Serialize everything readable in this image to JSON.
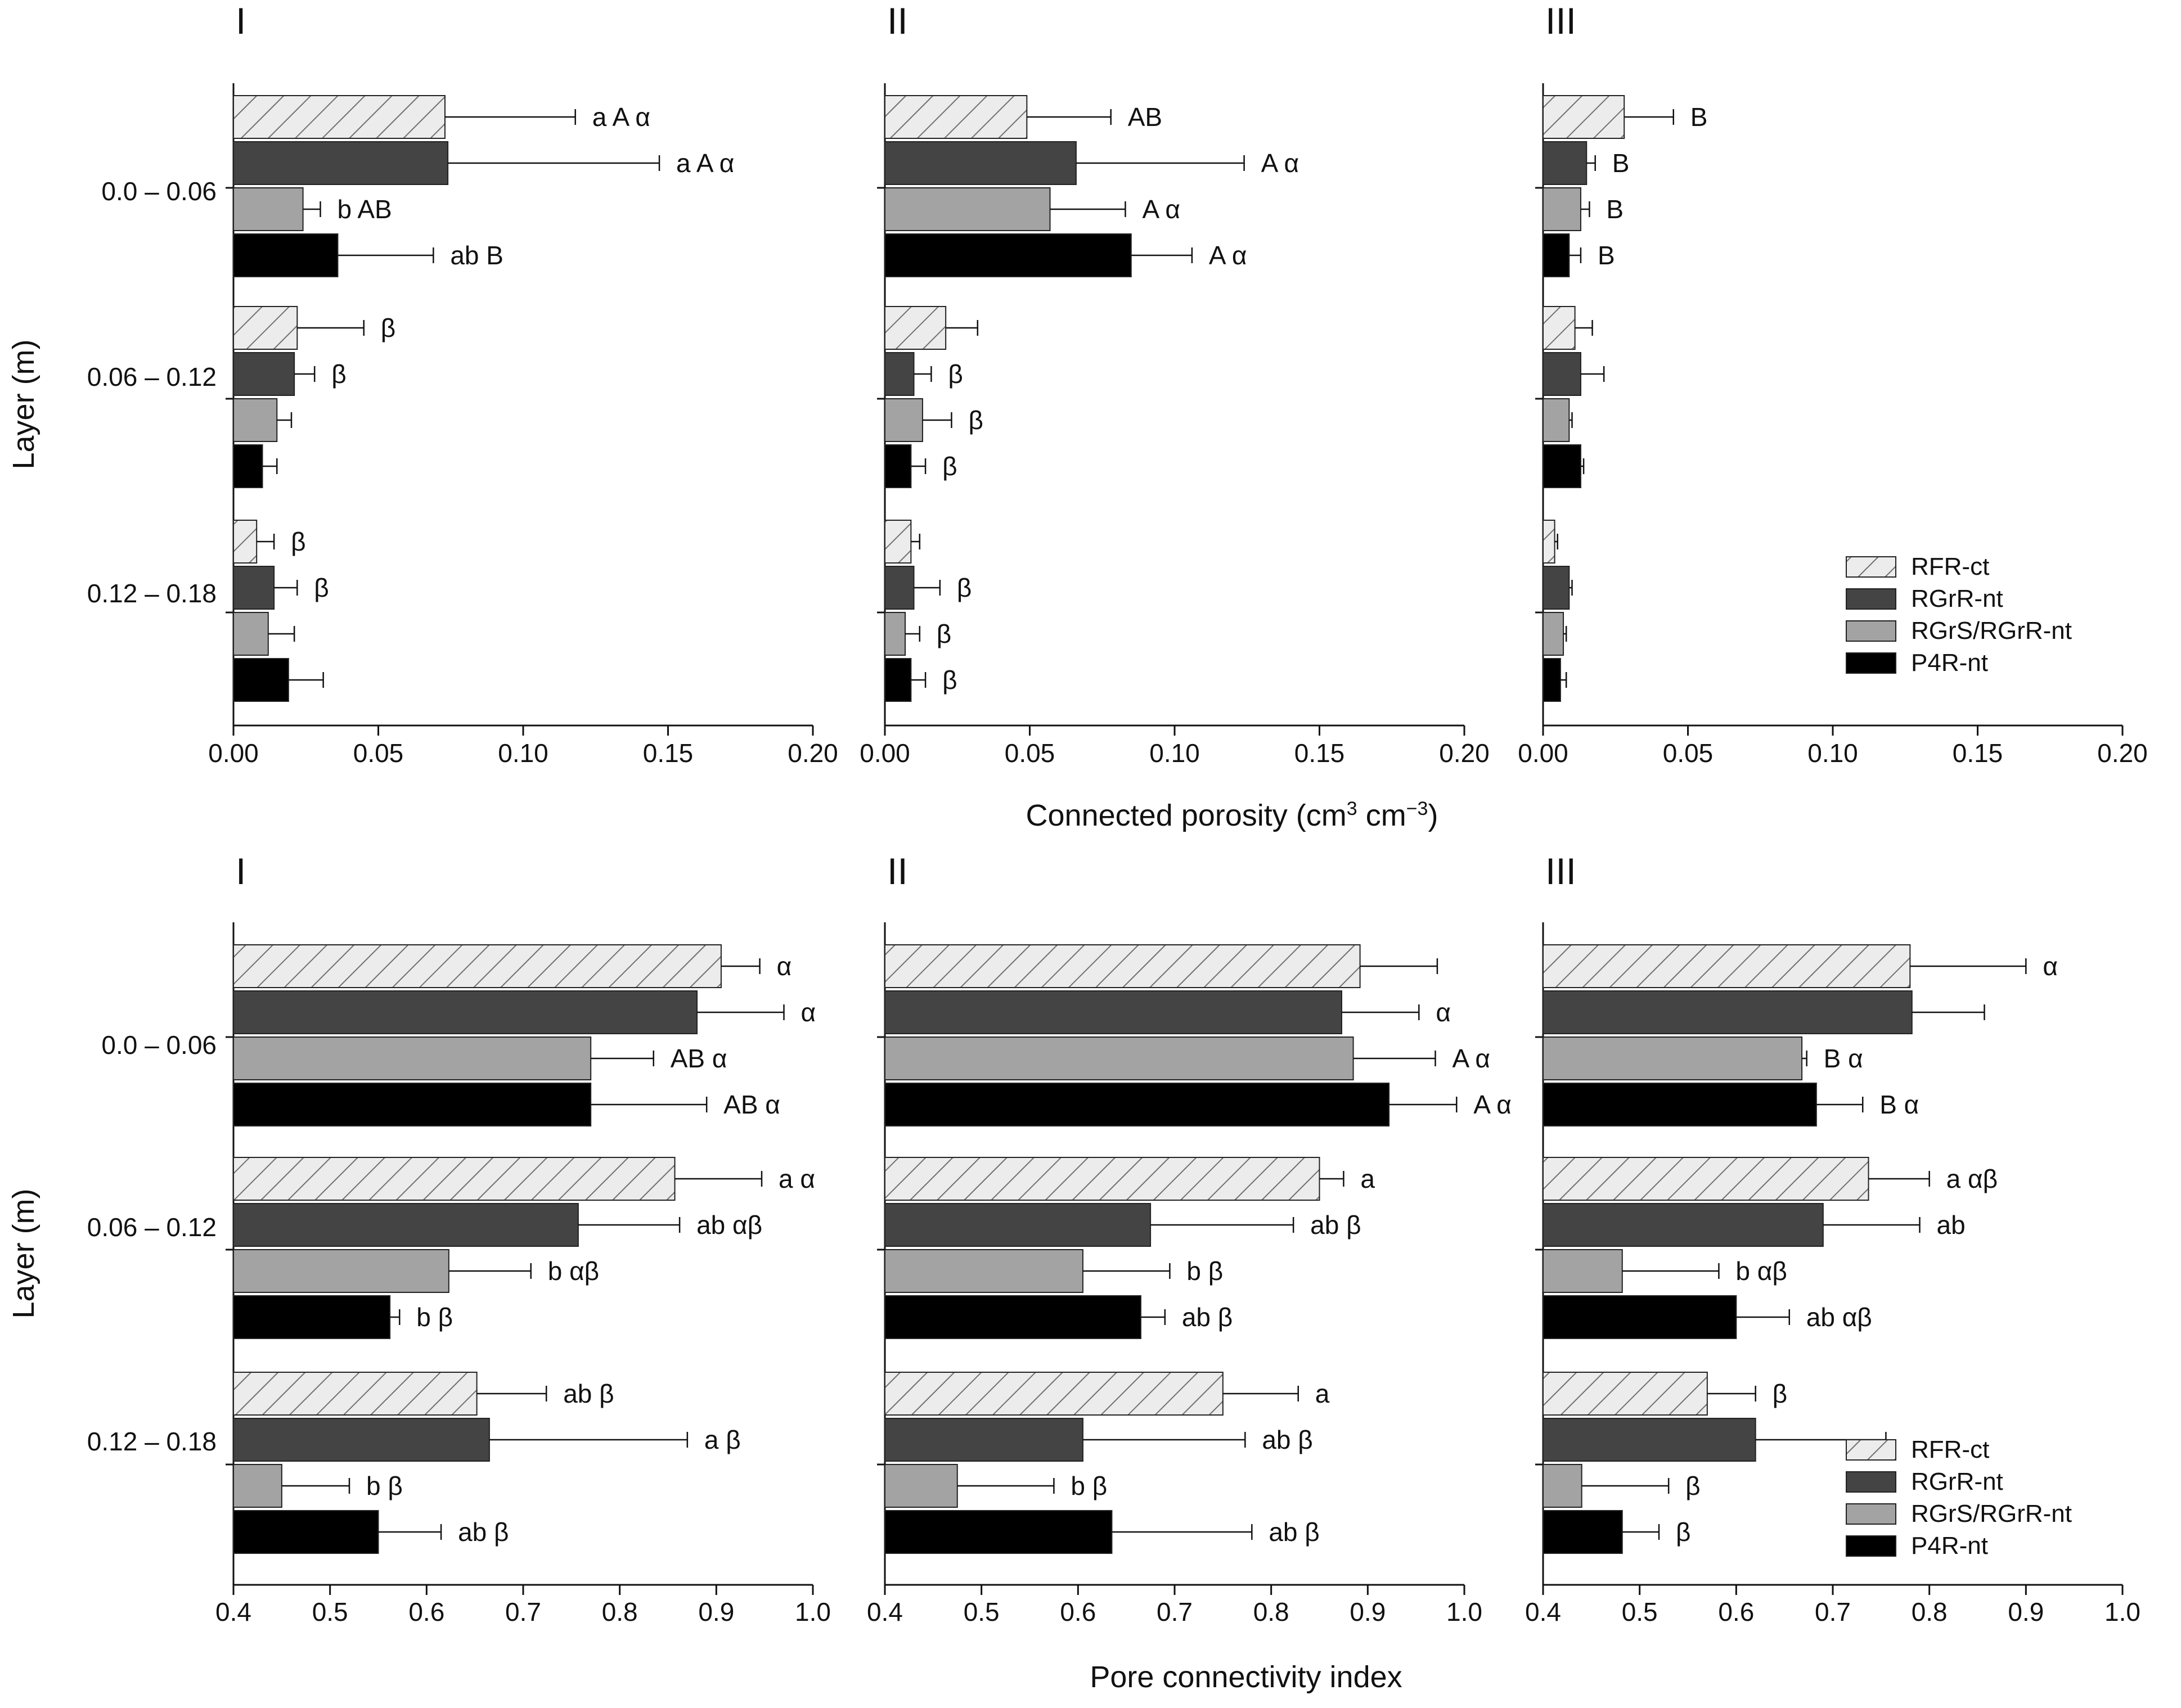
{
  "chart_data": {
    "type": "bar",
    "orientation": "horizontal",
    "categories": [
      "0.0 – 0.06",
      "0.06 – 0.12",
      "0.12 – 0.18"
    ],
    "series_names": [
      "RFR-ct",
      "RGrR-nt",
      "RGrS/RGrR-nt",
      "P4R-nt"
    ],
    "series_colors": [
      "#ececec",
      "#444444",
      "#a3a3a3",
      "#000000"
    ],
    "series_hatch": [
      true,
      false,
      false,
      false
    ],
    "legend": {
      "position": "bottom-right",
      "entries": [
        "RFR-ct",
        "RGrR-nt",
        "RGrS/RGrR-nt",
        "P4R-nt"
      ]
    },
    "ylabel": "Layer (m)",
    "top": {
      "xlabel_main": "Connected porosity (cm",
      "xlabel_sup1": "3",
      "xlabel_mid": " cm",
      "xlabel_sup2": "−3",
      "xlabel_end": ")",
      "xlim": [
        0,
        0.2
      ],
      "ticks": [
        0,
        0.05,
        0.1,
        0.15,
        0.2
      ],
      "tick_labels": [
        "0.00",
        "0.05",
        "0.10",
        "0.15",
        "0.20"
      ],
      "panels": [
        {
          "label": "I",
          "values": [
            [
              0.073,
              0.074,
              0.024,
              0.036
            ],
            [
              0.022,
              0.021,
              0.015,
              0.01
            ],
            [
              0.008,
              0.014,
              0.012,
              0.019
            ]
          ],
          "errors": [
            [
              0.045,
              0.073,
              0.006,
              0.033
            ],
            [
              0.023,
              0.007,
              0.005,
              0.005
            ],
            [
              0.006,
              0.008,
              0.009,
              0.012
            ]
          ],
          "annotations": [
            [
              "a A α",
              "a A α",
              "b AB",
              "ab B"
            ],
            [
              "β",
              "β",
              "",
              ""
            ],
            [
              "β",
              "β",
              "",
              ""
            ]
          ]
        },
        {
          "label": "II",
          "values": [
            [
              0.049,
              0.066,
              0.057,
              0.085
            ],
            [
              0.021,
              0.01,
              0.013,
              0.009
            ],
            [
              0.009,
              0.01,
              0.007,
              0.009
            ]
          ],
          "errors": [
            [
              0.029,
              0.058,
              0.026,
              0.021
            ],
            [
              0.011,
              0.006,
              0.01,
              0.005
            ],
            [
              0.003,
              0.009,
              0.005,
              0.005
            ]
          ],
          "annotations": [
            [
              "AB",
              "A α",
              "A α",
              "A α"
            ],
            [
              "",
              "β",
              "β",
              "β"
            ],
            [
              "",
              "β",
              "β",
              "β"
            ]
          ]
        },
        {
          "label": "III",
          "values": [
            [
              0.028,
              0.015,
              0.013,
              0.009
            ],
            [
              0.011,
              0.013,
              0.009,
              0.013
            ],
            [
              0.004,
              0.009,
              0.007,
              0.006
            ]
          ],
          "errors": [
            [
              0.017,
              0.003,
              0.003,
              0.004
            ],
            [
              0.006,
              0.008,
              0.001,
              0.001
            ],
            [
              0.001,
              0.001,
              0.001,
              0.002
            ]
          ],
          "annotations": [
            [
              "B",
              "B",
              "B",
              "B"
            ],
            [
              "",
              "",
              "",
              ""
            ],
            [
              "",
              "",
              "",
              ""
            ]
          ]
        }
      ]
    },
    "bottom": {
      "xlabel": "Pore connectivity index",
      "xlim": [
        0.4,
        1.0
      ],
      "ticks": [
        0.4,
        0.5,
        0.6,
        0.7,
        0.8,
        0.9,
        1.0
      ],
      "tick_labels": [
        "0.4",
        "0.5",
        "0.6",
        "0.7",
        "0.8",
        "0.9",
        "1.0"
      ],
      "panels": [
        {
          "label": "I",
          "values": [
            [
              0.905,
              0.88,
              0.77,
              0.77
            ],
            [
              0.857,
              0.757,
              0.623,
              0.562
            ],
            [
              0.652,
              0.665,
              0.45,
              0.55
            ]
          ],
          "errors": [
            [
              0.04,
              0.09,
              0.065,
              0.12
            ],
            [
              0.09,
              0.105,
              0.085,
              0.01
            ],
            [
              0.072,
              0.205,
              0.07,
              0.065
            ]
          ],
          "annotations": [
            [
              "α",
              "α",
              "AB α",
              "AB α"
            ],
            [
              "a α",
              "ab αβ",
              "b αβ",
              "b β"
            ],
            [
              "ab β",
              "a β",
              "b β",
              "ab β"
            ]
          ]
        },
        {
          "label": "II",
          "values": [
            [
              0.892,
              0.873,
              0.885,
              0.922
            ],
            [
              0.85,
              0.675,
              0.605,
              0.665
            ],
            [
              0.75,
              0.605,
              0.475,
              0.635
            ]
          ],
          "errors": [
            [
              0.08,
              0.08,
              0.085,
              0.07
            ],
            [
              0.025,
              0.148,
              0.09,
              0.025
            ],
            [
              0.078,
              0.168,
              0.1,
              0.145
            ]
          ],
          "annotations": [
            [
              "",
              "α",
              "A α",
              "A α"
            ],
            [
              "a",
              "ab β",
              "b β",
              "ab β"
            ],
            [
              "a",
              "ab β",
              "b β",
              "ab β"
            ]
          ]
        },
        {
          "label": "III",
          "values": [
            [
              0.78,
              0.782,
              0.668,
              0.683
            ],
            [
              0.737,
              0.69,
              0.482,
              0.6
            ],
            [
              0.57,
              0.62,
              0.44,
              0.482
            ]
          ],
          "errors": [
            [
              0.12,
              0.075,
              0.005,
              0.048
            ],
            [
              0.063,
              0.1,
              0.1,
              0.055
            ],
            [
              0.05,
              0.135,
              0.09,
              0.038
            ]
          ],
          "annotations": [
            [
              "α",
              "",
              "B α",
              "B α"
            ],
            [
              "a αβ",
              "ab",
              "b αβ",
              "ab αβ"
            ],
            [
              "β",
              "",
              "β",
              "β"
            ]
          ]
        }
      ]
    }
  }
}
